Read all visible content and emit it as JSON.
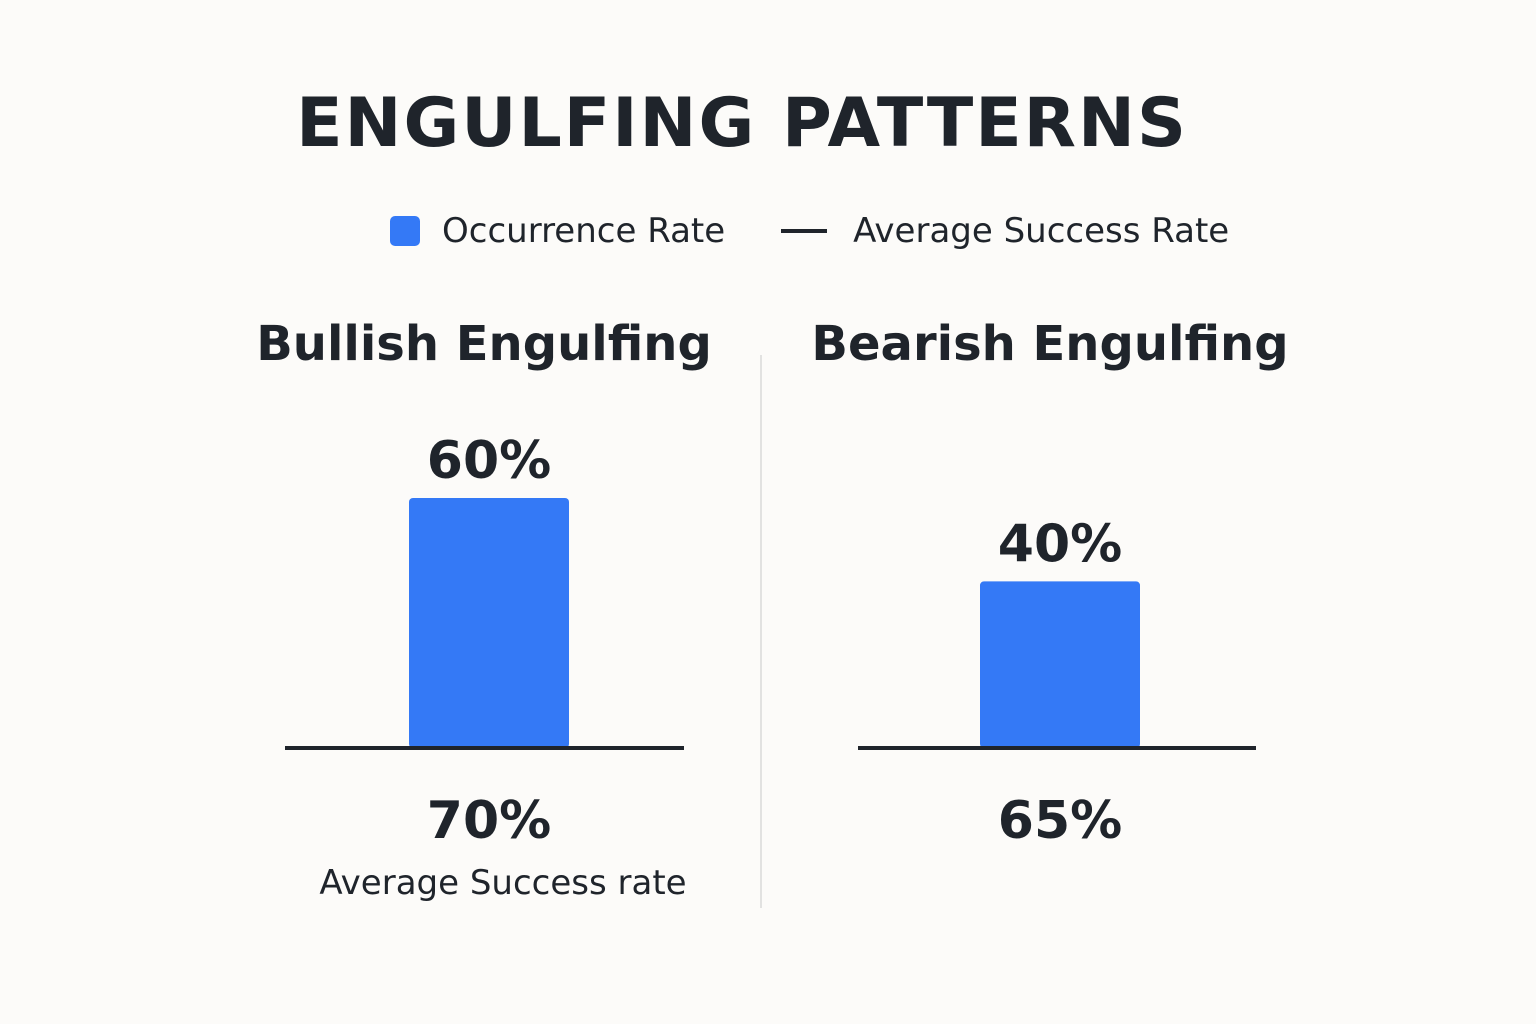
{
  "title": "ENGULFING PATTERNS",
  "legend": {
    "occurrence_label": "Occurrence Rate",
    "success_label": "Average Success Rate"
  },
  "colors": {
    "bar": "#3479f6",
    "text": "#1f242b",
    "divider": "#d9d9d9",
    "background": "#fcfbf9"
  },
  "chart_data": {
    "type": "bar",
    "series": [
      {
        "name": "Occurrence Rate",
        "values": [
          60,
          40
        ]
      },
      {
        "name": "Average Success Rate",
        "values": [
          70,
          65
        ]
      }
    ],
    "panels": [
      {
        "title": "Bullish Engulfing",
        "occurrence_rate": 60,
        "occurrence_label": "60%",
        "success_rate": 70,
        "success_label": "70%",
        "success_caption": "Average Success rate"
      },
      {
        "title": "Bearish Engulfing",
        "occurrence_rate": 40,
        "occurrence_label": "40%",
        "success_rate": 65,
        "success_label": "65%"
      }
    ]
  }
}
